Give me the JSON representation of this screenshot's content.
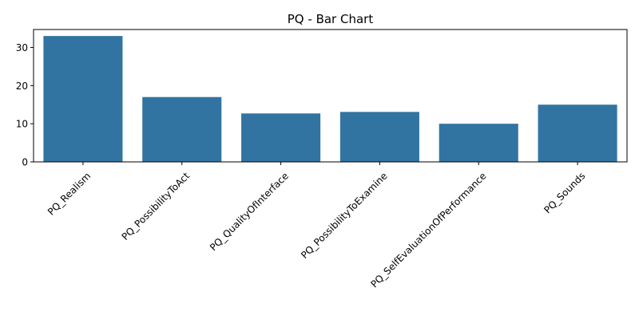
{
  "chart_data": {
    "type": "bar",
    "title": "PQ - Bar Chart",
    "xlabel": "",
    "ylabel": "",
    "categories": [
      "PQ_Realism",
      "PQ_PossibilityToAct",
      "PQ_QualityOfInterface",
      "PQ_PossibilityToExamine",
      "PQ_SelfEvaluationOfPerformance",
      "PQ_Sounds"
    ],
    "values": [
      33,
      17,
      12.7,
      13.1,
      10,
      15
    ],
    "ylim": [
      0,
      34.7
    ],
    "yticks": [
      0,
      10,
      20,
      30
    ],
    "bar_color": "#3274a1",
    "grid": false,
    "legend": "none"
  }
}
